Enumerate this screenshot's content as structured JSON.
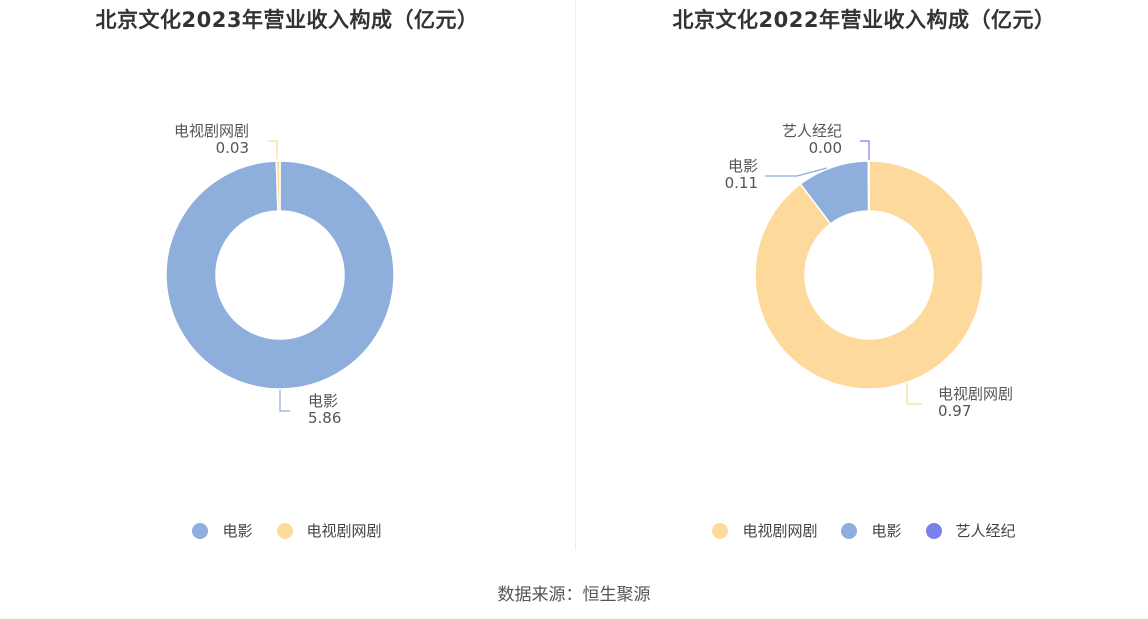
{
  "chart_data": [
    {
      "type": "pie",
      "title": "北京文化2023年营业收入构成（亿元）",
      "series": [
        {
          "name": "电影",
          "value": 5.86,
          "label": "5.86",
          "color": "#8eaedc"
        },
        {
          "name": "电视剧网剧",
          "value": 0.03,
          "label": "0.03",
          "color": "#fdd99b"
        }
      ],
      "legend": [
        "电影",
        "电视剧网剧"
      ]
    },
    {
      "type": "pie",
      "title": "北京文化2022年营业收入构成（亿元）",
      "series": [
        {
          "name": "电视剧网剧",
          "value": 0.97,
          "label": "0.97",
          "color": "#fdd99b"
        },
        {
          "name": "电影",
          "value": 0.11,
          "label": "0.11",
          "color": "#8eaedc"
        },
        {
          "name": "艺人经纪",
          "value": 0.001,
          "label": "0.00",
          "color": "#7b7ff0"
        }
      ],
      "legend": [
        "电视剧网剧",
        "电影",
        "艺人经纪"
      ]
    }
  ],
  "source": "数据来源：恒生聚源"
}
